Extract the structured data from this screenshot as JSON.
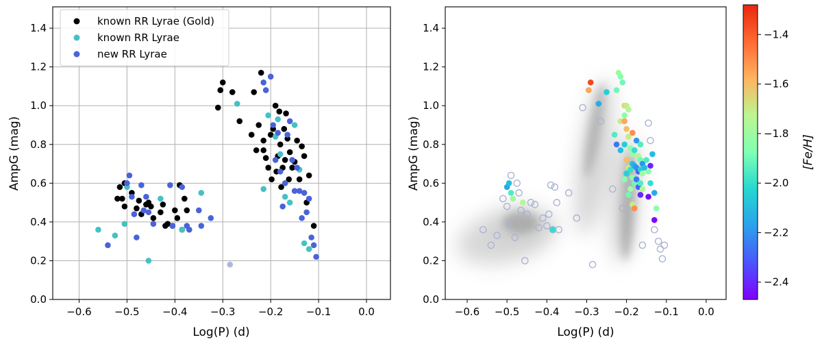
{
  "chart_data": [
    {
      "type": "scatter",
      "panel": "left",
      "xlabel": "Log(P) (d)",
      "ylabel": "AmpG (mag)",
      "xlim": [
        -0.655,
        0.05
      ],
      "ylim": [
        0.0,
        1.51
      ],
      "xticks": [
        -0.6,
        -0.5,
        -0.4,
        -0.3,
        -0.2,
        -0.1,
        0.0
      ],
      "xtick_labels": [
        "−0.6",
        "−0.5",
        "−0.4",
        "−0.3",
        "−0.2",
        "−0.1",
        "0.0"
      ],
      "yticks": [
        0.0,
        0.2,
        0.4,
        0.6,
        0.8,
        1.0,
        1.2,
        1.4
      ],
      "ytick_labels": [
        "0.0",
        "0.2",
        "0.4",
        "0.6",
        "0.8",
        "1.0",
        "1.2",
        "1.4"
      ],
      "grid": true,
      "legend_position": "top-left",
      "series": [
        {
          "name": "known RR Lyrae (Gold)",
          "color": "#000000",
          "points": [
            [
              -0.52,
              0.52
            ],
            [
              -0.515,
              0.58
            ],
            [
              -0.51,
              0.52
            ],
            [
              -0.505,
              0.6
            ],
            [
              -0.505,
              0.48
            ],
            [
              -0.49,
              0.55
            ],
            [
              -0.48,
              0.47
            ],
            [
              -0.475,
              0.51
            ],
            [
              -0.47,
              0.44
            ],
            [
              -0.46,
              0.49
            ],
            [
              -0.455,
              0.5
            ],
            [
              -0.45,
              0.48
            ],
            [
              -0.445,
              0.42
            ],
            [
              -0.43,
              0.45
            ],
            [
              -0.425,
              0.49
            ],
            [
              -0.42,
              0.38
            ],
            [
              -0.415,
              0.39
            ],
            [
              -0.405,
              0.38
            ],
            [
              -0.4,
              0.46
            ],
            [
              -0.395,
              0.42
            ],
            [
              -0.39,
              0.59
            ],
            [
              -0.385,
              0.36
            ],
            [
              -0.38,
              0.52
            ],
            [
              -0.375,
              0.46
            ],
            [
              -0.31,
              0.99
            ],
            [
              -0.305,
              1.08
            ],
            [
              -0.3,
              1.12
            ],
            [
              -0.28,
              1.07
            ],
            [
              -0.265,
              0.92
            ],
            [
              -0.24,
              0.85
            ],
            [
              -0.235,
              1.07
            ],
            [
              -0.23,
              0.77
            ],
            [
              -0.225,
              0.9
            ],
            [
              -0.22,
              1.17
            ],
            [
              -0.215,
              0.82
            ],
            [
              -0.215,
              0.77
            ],
            [
              -0.21,
              0.73
            ],
            [
              -0.205,
              0.68
            ],
            [
              -0.2,
              0.85
            ],
            [
              -0.198,
              0.62
            ],
            [
              -0.195,
              0.88
            ],
            [
              -0.19,
              1.0
            ],
            [
              -0.188,
              0.66
            ],
            [
              -0.185,
              0.74
            ],
            [
              -0.182,
              0.97
            ],
            [
              -0.18,
              0.8
            ],
            [
              -0.178,
              0.58
            ],
            [
              -0.175,
              0.68
            ],
            [
              -0.172,
              0.88
            ],
            [
              -0.17,
              0.72
            ],
            [
              -0.168,
              0.96
            ],
            [
              -0.165,
              0.83
            ],
            [
              -0.162,
              0.62
            ],
            [
              -0.16,
              0.76
            ],
            [
              -0.155,
              0.68
            ],
            [
              -0.15,
              0.71
            ],
            [
              -0.145,
              0.82
            ],
            [
              -0.14,
              0.62
            ],
            [
              -0.135,
              0.79
            ],
            [
              -0.13,
              0.74
            ],
            [
              -0.125,
              0.5
            ],
            [
              -0.12,
              0.64
            ],
            [
              -0.11,
              0.38
            ]
          ]
        },
        {
          "name": "known RR Lyrae",
          "color": "#45c1c3",
          "points": [
            [
              -0.56,
              0.36
            ],
            [
              -0.525,
              0.33
            ],
            [
              -0.505,
              0.39
            ],
            [
              -0.5,
              0.58
            ],
            [
              -0.455,
              0.2
            ],
            [
              -0.43,
              0.52
            ],
            [
              -0.385,
              0.36
            ],
            [
              -0.345,
              0.55
            ],
            [
              -0.27,
              1.01
            ],
            [
              -0.215,
              0.57
            ],
            [
              -0.205,
              0.95
            ],
            [
              -0.19,
              0.84
            ],
            [
              -0.185,
              0.93
            ],
            [
              -0.18,
              0.75
            ],
            [
              -0.17,
              0.53
            ],
            [
              -0.16,
              0.5
            ],
            [
              -0.15,
              0.9
            ],
            [
              -0.14,
              0.67
            ],
            [
              -0.13,
              0.29
            ],
            [
              -0.12,
              0.26
            ]
          ]
        },
        {
          "name": "new RR Lyrae",
          "color": "#4a63d9",
          "points": [
            [
              -0.54,
              0.28
            ],
            [
              -0.5,
              0.6
            ],
            [
              -0.495,
              0.64
            ],
            [
              -0.49,
              0.53
            ],
            [
              -0.485,
              0.44
            ],
            [
              -0.48,
              0.32
            ],
            [
              -0.47,
              0.59
            ],
            [
              -0.465,
              0.46
            ],
            [
              -0.46,
              0.53
            ],
            [
              -0.455,
              0.45
            ],
            [
              -0.445,
              0.39
            ],
            [
              -0.41,
              0.59
            ],
            [
              -0.405,
              0.38
            ],
            [
              -0.385,
              0.58
            ],
            [
              -0.375,
              0.38
            ],
            [
              -0.37,
              0.36
            ],
            [
              -0.35,
              0.46
            ],
            [
              -0.345,
              0.38
            ],
            [
              -0.325,
              0.42
            ],
            [
              -0.215,
              1.12
            ],
            [
              -0.21,
              1.08
            ],
            [
              -0.2,
              1.15
            ],
            [
              -0.195,
              0.9
            ],
            [
              -0.19,
              0.72
            ],
            [
              -0.185,
              0.86
            ],
            [
              -0.18,
              0.66
            ],
            [
              -0.175,
              0.48
            ],
            [
              -0.17,
              0.6
            ],
            [
              -0.165,
              0.85
            ],
            [
              -0.16,
              0.92
            ],
            [
              -0.155,
              0.72
            ],
            [
              -0.15,
              0.56
            ],
            [
              -0.145,
              0.68
            ],
            [
              -0.14,
              0.56
            ],
            [
              -0.135,
              0.42
            ],
            [
              -0.13,
              0.55
            ],
            [
              -0.125,
              0.45
            ],
            [
              -0.12,
              0.52
            ],
            [
              -0.115,
              0.32
            ],
            [
              -0.11,
              0.28
            ],
            [
              -0.105,
              0.22
            ]
          ]
        },
        {
          "name": "faint point",
          "color": "#aabbd8",
          "show_in_legend": false,
          "points": [
            [
              -0.285,
              0.18
            ]
          ]
        }
      ]
    },
    {
      "type": "scatter",
      "panel": "right",
      "xlabel": "Log(P) (d)",
      "ylabel": "AmpG (mag)",
      "xlim": [
        -0.655,
        0.05
      ],
      "ylim": [
        0.0,
        1.51
      ],
      "xticks": [
        -0.6,
        -0.5,
        -0.4,
        -0.3,
        -0.2,
        -0.1,
        0.0
      ],
      "xtick_labels": [
        "−0.6",
        "−0.5",
        "−0.4",
        "−0.3",
        "−0.2",
        "−0.1",
        "0.0"
      ],
      "yticks": [
        0.0,
        0.2,
        0.4,
        0.6,
        0.8,
        1.0,
        1.2,
        1.4
      ],
      "ytick_labels": [
        "0.0",
        "0.2",
        "0.4",
        "0.6",
        "0.8",
        "1.0",
        "1.2",
        "1.4"
      ],
      "grid": false,
      "background_density_color": "#808080",
      "colorbar": {
        "label": "[Fe/H]",
        "range": [
          -2.47,
          -1.28
        ],
        "ticks": [
          -2.4,
          -2.2,
          -2.0,
          -1.8,
          -1.6,
          -1.4
        ],
        "tick_labels": [
          "−2.4",
          "−2.2",
          "−2.0",
          "−1.8",
          "−1.6",
          "−1.4"
        ],
        "colormap": "rainbow"
      },
      "open_points": [
        [
          -0.56,
          0.36
        ],
        [
          -0.54,
          0.28
        ],
        [
          -0.525,
          0.33
        ],
        [
          -0.51,
          0.52
        ],
        [
          -0.5,
          0.48
        ],
        [
          -0.495,
          0.39
        ],
        [
          -0.49,
          0.64
        ],
        [
          -0.48,
          0.32
        ],
        [
          -0.475,
          0.6
        ],
        [
          -0.47,
          0.55
        ],
        [
          -0.465,
          0.46
        ],
        [
          -0.455,
          0.2
        ],
        [
          -0.45,
          0.44
        ],
        [
          -0.44,
          0.5
        ],
        [
          -0.43,
          0.49
        ],
        [
          -0.42,
          0.37
        ],
        [
          -0.41,
          0.42
        ],
        [
          -0.4,
          0.38
        ],
        [
          -0.395,
          0.44
        ],
        [
          -0.39,
          0.59
        ],
        [
          -0.385,
          0.36
        ],
        [
          -0.38,
          0.58
        ],
        [
          -0.375,
          0.5
        ],
        [
          -0.37,
          0.36
        ],
        [
          -0.345,
          0.55
        ],
        [
          -0.325,
          0.42
        ],
        [
          -0.31,
          0.99
        ],
        [
          -0.285,
          0.18
        ],
        [
          -0.265,
          0.92
        ],
        [
          -0.235,
          0.57
        ],
        [
          -0.21,
          0.47
        ],
        [
          -0.195,
          0.58
        ],
        [
          -0.16,
          0.28
        ],
        [
          -0.145,
          0.91
        ],
        [
          -0.14,
          0.82
        ],
        [
          -0.13,
          0.36
        ],
        [
          -0.12,
          0.3
        ],
        [
          -0.115,
          0.26
        ],
        [
          -0.11,
          0.21
        ],
        [
          -0.105,
          0.28
        ]
      ],
      "colored_points": [
        [
          -0.5,
          0.58,
          -2.15
        ],
        [
          -0.495,
          0.6,
          -2.1
        ],
        [
          -0.49,
          0.55,
          -1.95
        ],
        [
          -0.485,
          0.52,
          -1.8
        ],
        [
          -0.46,
          0.5,
          -1.75
        ],
        [
          -0.385,
          0.36,
          -2.0
        ],
        [
          -0.29,
          1.12,
          -1.35
        ],
        [
          -0.295,
          1.08,
          -1.55
        ],
        [
          -0.27,
          1.01,
          -2.15
        ],
        [
          -0.25,
          1.07,
          -2.05
        ],
        [
          -0.22,
          1.17,
          -1.8
        ],
        [
          -0.215,
          1.15,
          -1.85
        ],
        [
          -0.21,
          1.12,
          -1.9
        ],
        [
          -0.225,
          1.08,
          -1.9
        ],
        [
          -0.205,
          1.0,
          -1.65
        ],
        [
          -0.2,
          1.0,
          -1.7
        ],
        [
          -0.195,
          0.98,
          -1.75
        ],
        [
          -0.205,
          0.95,
          -1.85
        ],
        [
          -0.215,
          0.92,
          -1.7
        ],
        [
          -0.205,
          0.92,
          -1.55
        ],
        [
          -0.2,
          0.88,
          -1.6
        ],
        [
          -0.23,
          0.85,
          -1.95
        ],
        [
          -0.185,
          0.86,
          -1.5
        ],
        [
          -0.195,
          0.84,
          -1.7
        ],
        [
          -0.225,
          0.8,
          -2.25
        ],
        [
          -0.205,
          0.8,
          -2.05
        ],
        [
          -0.215,
          0.77,
          -2.1
        ],
        [
          -0.19,
          0.78,
          -1.85
        ],
        [
          -0.185,
          0.75,
          -1.8
        ],
        [
          -0.18,
          0.77,
          -2.0
        ],
        [
          -0.175,
          0.82,
          -2.2
        ],
        [
          -0.17,
          0.74,
          -1.75
        ],
        [
          -0.165,
          0.8,
          -1.95
        ],
        [
          -0.165,
          0.72,
          -1.9
        ],
        [
          -0.2,
          0.72,
          -1.6
        ],
        [
          -0.195,
          0.68,
          -1.7
        ],
        [
          -0.19,
          0.67,
          -2.0
        ],
        [
          -0.185,
          0.7,
          -2.1
        ],
        [
          -0.18,
          0.69,
          -2.15
        ],
        [
          -0.175,
          0.68,
          -2.2
        ],
        [
          -0.17,
          0.66,
          -2.3
        ],
        [
          -0.165,
          0.67,
          -2.05
        ],
        [
          -0.16,
          0.7,
          -2.2
        ],
        [
          -0.16,
          0.65,
          -1.8
        ],
        [
          -0.155,
          0.68,
          -2.1
        ],
        [
          -0.15,
          0.72,
          -1.95
        ],
        [
          -0.145,
          0.66,
          -1.85
        ],
        [
          -0.14,
          0.69,
          -2.4
        ],
        [
          -0.135,
          0.75,
          -2.1
        ],
        [
          -0.185,
          0.63,
          -1.85
        ],
        [
          -0.18,
          0.6,
          -1.9
        ],
        [
          -0.175,
          0.62,
          -2.25
        ],
        [
          -0.17,
          0.58,
          -2.3
        ],
        [
          -0.165,
          0.6,
          -1.95
        ],
        [
          -0.165,
          0.54,
          -2.4
        ],
        [
          -0.16,
          0.57,
          -1.75
        ],
        [
          -0.19,
          0.57,
          -1.8
        ],
        [
          -0.195,
          0.54,
          -1.9
        ],
        [
          -0.205,
          0.62,
          -1.85
        ],
        [
          -0.2,
          0.65,
          -2.05
        ],
        [
          -0.145,
          0.53,
          -2.45
        ],
        [
          -0.14,
          0.6,
          -2.0
        ],
        [
          -0.13,
          0.55,
          -2.15
        ],
        [
          -0.125,
          0.47,
          -1.85
        ],
        [
          -0.13,
          0.41,
          -2.45
        ],
        [
          -0.185,
          0.49,
          -1.7
        ],
        [
          -0.18,
          0.47,
          -1.5
        ]
      ]
    }
  ]
}
